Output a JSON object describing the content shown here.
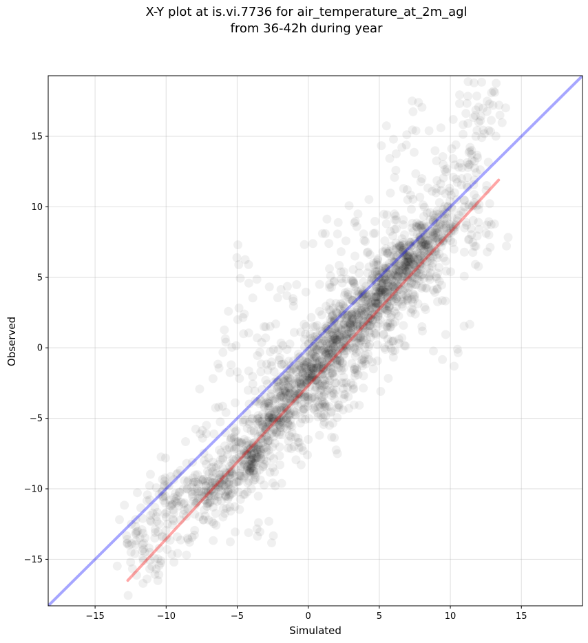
{
  "chart_data": {
    "type": "scatter",
    "title_lines": [
      "X-Y plot at is.vi.7736 for air_temperature_at_2m_agl",
      "from 36-42h during year"
    ],
    "xlabel": "Simulated",
    "ylabel": "Observed",
    "xlim": [
      -18.3,
      19.3
    ],
    "ylim": [
      -18.3,
      19.3
    ],
    "xticks": [
      -15,
      -10,
      -5,
      0,
      5,
      10,
      15
    ],
    "yticks": [
      -15,
      -10,
      -5,
      0,
      5,
      10,
      15
    ],
    "xtick_labels": [
      "−15",
      "−10",
      "−5",
      "0",
      "5",
      "10",
      "15"
    ],
    "ytick_labels": [
      "−15",
      "−10",
      "−5",
      "0",
      "5",
      "10",
      "15"
    ],
    "grid": true,
    "point_color": "#000000",
    "point_opacity": 0.06,
    "lines": [
      {
        "role": "one-to-one",
        "color": "#0000ff",
        "opacity": 0.35,
        "x": [
          -18.3,
          19.3
        ],
        "y": [
          -18.3,
          19.3
        ]
      },
      {
        "role": "regression",
        "color": "#ff0000",
        "opacity": 0.35,
        "x": [
          -12.7,
          13.4
        ],
        "y": [
          -16.5,
          11.9
        ]
      }
    ],
    "points": {
      "core": [
        [
          -12.5,
          -15.2
        ],
        [
          -12.2,
          -14.6
        ],
        [
          -12,
          -13
        ],
        [
          -11.7,
          -12.9
        ],
        [
          -11.5,
          -14.5
        ],
        [
          -11.2,
          -14.2
        ],
        [
          -11,
          -15.5
        ],
        [
          -10.8,
          -13.5
        ],
        [
          -10.5,
          -12.5
        ],
        [
          -10.5,
          -10.4
        ],
        [
          -10.2,
          -10.6
        ],
        [
          -10,
          -12
        ],
        [
          -9.8,
          -9.8
        ],
        [
          -9.5,
          -11.5
        ],
        [
          -9.2,
          -10.5
        ],
        [
          -9,
          -12.2
        ],
        [
          -8.7,
          -11
        ],
        [
          -8.5,
          -9.5
        ],
        [
          -8.2,
          -10.2
        ],
        [
          -8,
          -11.8
        ],
        [
          -7.8,
          -9
        ],
        [
          -7.5,
          -10.5
        ],
        [
          -7.2,
          -9.8
        ],
        [
          -7,
          -11
        ],
        [
          -6.8,
          -8.5
        ],
        [
          -6.5,
          -10
        ],
        [
          -6.2,
          -9.2
        ],
        [
          -6,
          -7.8
        ],
        [
          -5.8,
          -10.2
        ],
        [
          -5.5,
          -8.8
        ],
        [
          -5.2,
          -7.2
        ],
        [
          -5,
          -9.5
        ],
        [
          -4.8,
          -8
        ],
        [
          -4.5,
          -6.5
        ],
        [
          -4.3,
          -8.5
        ],
        [
          -4,
          -7.5
        ],
        [
          -3.8,
          -6
        ],
        [
          -3.5,
          -7
        ],
        [
          -3.2,
          -5.5
        ],
        [
          -3,
          -6.5
        ],
        [
          -2.8,
          -4.8
        ],
        [
          -2.5,
          -6
        ],
        [
          -2.2,
          -4.5
        ],
        [
          -2,
          -5.5
        ],
        [
          -1.8,
          -3.5
        ],
        [
          -1.5,
          -5
        ],
        [
          -1.2,
          -3
        ],
        [
          -1,
          -4.5
        ],
        [
          -0.8,
          -2.5
        ],
        [
          -0.5,
          -4
        ],
        [
          -0.2,
          -2
        ],
        [
          0,
          -3.5
        ],
        [
          0.2,
          -1.5
        ],
        [
          0.5,
          -3
        ],
        [
          0.8,
          -1
        ],
        [
          1,
          -2.5
        ],
        [
          1.2,
          -0.5
        ],
        [
          1.5,
          -2
        ],
        [
          1.8,
          0
        ],
        [
          2,
          -1.2
        ],
        [
          2.2,
          0.8
        ],
        [
          2.5,
          -0.5
        ],
        [
          2.8,
          1.5
        ],
        [
          3,
          0
        ],
        [
          3.2,
          2
        ],
        [
          3.5,
          0.8
        ],
        [
          3.8,
          2.8
        ],
        [
          4,
          1.2
        ],
        [
          4.2,
          3.2
        ],
        [
          4.5,
          2
        ],
        [
          4.8,
          4
        ],
        [
          5,
          2.5
        ],
        [
          5.2,
          4.5
        ],
        [
          5.5,
          3
        ],
        [
          5.8,
          5.2
        ],
        [
          6,
          3.8
        ],
        [
          6.2,
          5.8
        ],
        [
          6.5,
          4.5
        ],
        [
          6.8,
          6.5
        ],
        [
          7,
          5
        ],
        [
          7.2,
          7.2
        ],
        [
          7.5,
          5.5
        ],
        [
          7.8,
          7.8
        ],
        [
          8,
          6
        ],
        [
          8.2,
          8.5
        ],
        [
          8.5,
          6.5
        ],
        [
          8.8,
          9
        ],
        [
          9,
          7
        ],
        [
          9.2,
          9.5
        ],
        [
          9.5,
          7.5
        ],
        [
          9.8,
          10
        ],
        [
          10,
          8.5
        ],
        [
          10.3,
          11
        ],
        [
          10.5,
          9
        ],
        [
          10.8,
          12
        ],
        [
          11,
          10
        ],
        [
          11.3,
          13
        ],
        [
          11.5,
          14
        ],
        [
          11.8,
          15
        ],
        [
          12,
          16
        ],
        [
          12.3,
          17
        ],
        [
          12.6,
          17.5
        ],
        [
          13,
          17.2
        ],
        [
          10.5,
          -0.1
        ],
        [
          -4.2,
          5.9
        ],
        [
          -4.5,
          2.4
        ],
        [
          -5.8,
          0.4
        ],
        [
          -3,
          0.7
        ],
        [
          -1.5,
          3.7
        ],
        [
          0.8,
          4.5
        ],
        [
          1.2,
          8.1
        ],
        [
          3.5,
          9.5
        ],
        [
          6,
          14.8
        ],
        [
          8.5,
          15.4
        ],
        [
          9.5,
          13
        ],
        [
          10.2,
          16.2
        ],
        [
          11.7,
          7.2
        ],
        [
          12.6,
          6.8
        ],
        [
          -7.6,
          -6.1
        ],
        [
          -6.3,
          -4.2
        ],
        [
          -5,
          -1.7
        ],
        [
          -3,
          -2.3
        ],
        [
          -2,
          -0.7
        ],
        [
          0.5,
          1.5
        ],
        [
          2.5,
          5.4
        ],
        [
          4.2,
          6.8
        ],
        [
          5.5,
          8.8
        ],
        [
          7,
          10.5
        ],
        [
          8,
          12
        ],
        [
          9,
          11
        ],
        [
          11,
          8.5
        ],
        [
          12,
          9.8
        ],
        [
          3,
          -2.5
        ],
        [
          4.5,
          -1
        ],
        [
          6,
          0.5
        ],
        [
          8,
          1.5
        ],
        [
          -1,
          -7
        ],
        [
          -2.5,
          -8.5
        ],
        [
          -4,
          -10
        ],
        [
          -6,
          -12
        ],
        [
          1.5,
          -5.5
        ],
        [
          0,
          -6.5
        ],
        [
          -3.5,
          -12.4
        ],
        [
          -8.5,
          -13.5
        ]
      ],
      "dense": [
        [
          -4.2,
          -8
        ],
        [
          -4,
          -7.8
        ],
        [
          -3.8,
          -8.2
        ],
        [
          -3.5,
          -7.2
        ],
        [
          -3,
          -5.8
        ],
        [
          -2.5,
          -5
        ],
        [
          -2,
          -4.2
        ],
        [
          -1.5,
          -3.8
        ],
        [
          -1,
          -3.2
        ],
        [
          -0.5,
          -2.8
        ],
        [
          0,
          -2.2
        ],
        [
          0.3,
          -1.8
        ],
        [
          0.6,
          -1.2
        ],
        [
          1,
          -0.8
        ],
        [
          1.3,
          -0.4
        ],
        [
          1.6,
          0
        ],
        [
          2,
          0.4
        ],
        [
          2.4,
          0.9
        ],
        [
          2.8,
          1.3
        ],
        [
          3.2,
          1.8
        ],
        [
          3.6,
          2.2
        ],
        [
          4,
          2.8
        ],
        [
          4.4,
          3.2
        ],
        [
          4.8,
          3.6
        ],
        [
          5.2,
          4.1
        ],
        [
          5.6,
          4.6
        ],
        [
          6,
          5
        ],
        [
          6.4,
          5.4
        ],
        [
          6.8,
          5.9
        ],
        [
          7.2,
          6.3
        ],
        [
          7.6,
          6.8
        ],
        [
          8,
          7.2
        ],
        [
          8.4,
          7.6
        ],
        [
          8.8,
          8
        ],
        [
          9.2,
          8.6
        ],
        [
          -6.5,
          -9.6
        ],
        [
          -7,
          -10.5
        ],
        [
          -5.5,
          -9
        ],
        [
          -3,
          -3.5
        ],
        [
          -1.5,
          -1.5
        ],
        [
          0.5,
          0.8
        ],
        [
          2,
          2.5
        ],
        [
          3.5,
          4
        ],
        [
          5,
          5.5
        ],
        [
          6.5,
          7.2
        ],
        [
          1,
          -4
        ],
        [
          2.5,
          -2.5
        ],
        [
          4,
          -0.5
        ],
        [
          5.5,
          1.5
        ],
        [
          7,
          3.5
        ],
        [
          8.5,
          5
        ]
      ]
    }
  }
}
